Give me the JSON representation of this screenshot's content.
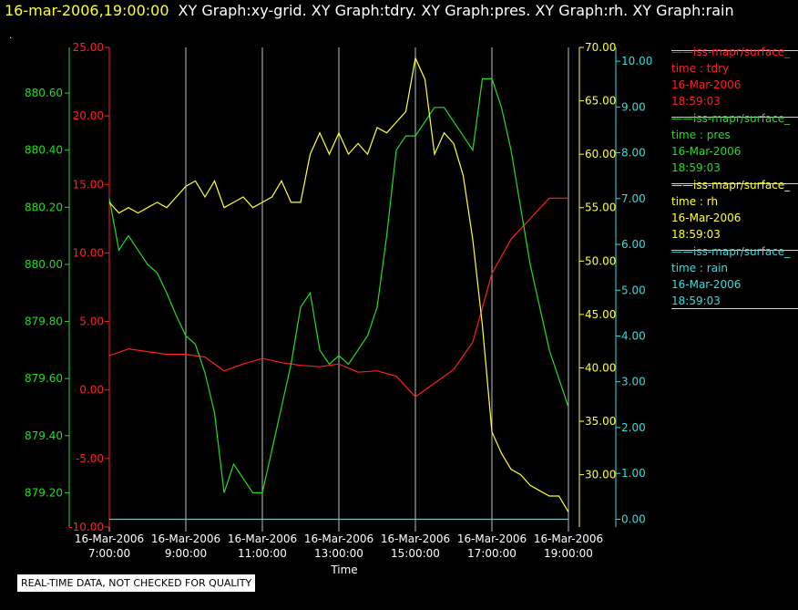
{
  "header": {
    "time": "16-mar-2006,19:00:00",
    "graphs": "XY Graph:xy-grid.  XY Graph:tdry.  XY Graph:pres.  XY Graph:rh.  XY Graph:rain"
  },
  "dot": ".",
  "legend": [
    {
      "name": "iss-mapr/surface_",
      "field": "time : tdry",
      "date": "16-Mar-2006",
      "time": "18:59:03",
      "color": "#ff2020"
    },
    {
      "name": "iss-mapr/surface_",
      "field": "time : pres",
      "date": "16-Mar-2006",
      "time": "18:59:03",
      "color": "#22dd22"
    },
    {
      "name": "iss-mapr/surface_",
      "field": "time : rh",
      "date": "16-Mar-2006",
      "time": "18:59:03",
      "color": "#ffff33"
    },
    {
      "name": "iss-mapr/surface_",
      "field": "time : rain",
      "date": "16-Mar-2006",
      "time": "18:59:03",
      "color": "#33dddd"
    }
  ],
  "footer_note": "REAL-TIME DATA, NOT CHECKED FOR QUALITY",
  "chart_data": {
    "type": "line",
    "xlabel": "Time",
    "x_ticks": [
      {
        "date": "16-Mar-2006",
        "time": "7:00:00"
      },
      {
        "date": "16-Mar-2006",
        "time": "9:00:00"
      },
      {
        "date": "16-Mar-2006",
        "time": "11:00:00"
      },
      {
        "date": "16-Mar-2006",
        "time": "13:00:00"
      },
      {
        "date": "16-Mar-2006",
        "time": "15:00:00"
      },
      {
        "date": "16-Mar-2006",
        "time": "17:00:00"
      },
      {
        "date": "16-Mar-2006",
        "time": "19:00:00"
      }
    ],
    "xlim_hours": [
      7,
      19
    ],
    "grid": "vertical",
    "axes": [
      {
        "series": "tdry",
        "color": "#ff2020",
        "ylim": [
          -10,
          25
        ],
        "ticks": [
          "-10.00",
          "-5.00",
          "0.00",
          "5.00",
          "10.00",
          "15.00",
          "20.00",
          "25.00"
        ]
      },
      {
        "series": "pres",
        "color": "#22dd22",
        "ylim": [
          879.08,
          880.76
        ],
        "ticks": [
          "879.20",
          "879.40",
          "879.60",
          "879.80",
          "880.00",
          "880.20",
          "880.40",
          "880.60"
        ]
      },
      {
        "series": "rh",
        "color": "#ffff33",
        "ylim": [
          25.1,
          70
        ],
        "ticks": [
          "30.00",
          "35.00",
          "40.00",
          "45.00",
          "50.00",
          "55.00",
          "60.00",
          "65.00",
          "70.00"
        ]
      },
      {
        "series": "rain",
        "color": "#33dddd",
        "ylim": [
          -0.17,
          10.3
        ],
        "ticks": [
          "0.00",
          "1.00",
          "2.00",
          "3.00",
          "4.00",
          "5.00",
          "6.00",
          "7.00",
          "8.00",
          "9.00",
          "10.00"
        ]
      }
    ],
    "series": [
      {
        "name": "tdry",
        "color": "#ff2020",
        "x": [
          7.0,
          7.5,
          8.0,
          8.5,
          9.0,
          9.5,
          10.0,
          10.5,
          11.0,
          11.5,
          12.0,
          12.5,
          13.0,
          13.5,
          14.0,
          14.5,
          15.0,
          15.5,
          16.0,
          16.5,
          17.0,
          17.5,
          18.0,
          18.5,
          19.0
        ],
        "y": [
          2.5,
          3.0,
          2.8,
          2.6,
          2.6,
          2.4,
          1.4,
          1.9,
          2.3,
          2.0,
          1.8,
          1.7,
          1.9,
          1.3,
          1.4,
          1.0,
          -0.5,
          0.5,
          1.5,
          3.5,
          8.5,
          11.0,
          12.5,
          14.0,
          14.0
        ]
      },
      {
        "name": "pres",
        "color": "#22dd22",
        "x": [
          7.0,
          7.25,
          7.5,
          7.75,
          8.0,
          8.25,
          8.5,
          8.75,
          9.0,
          9.25,
          9.5,
          9.75,
          10.0,
          10.25,
          10.5,
          10.75,
          11.0,
          11.25,
          11.5,
          11.75,
          12.0,
          12.25,
          12.5,
          12.75,
          13.0,
          13.25,
          13.5,
          13.75,
          14.0,
          14.25,
          14.5,
          14.75,
          15.0,
          15.25,
          15.5,
          15.75,
          16.0,
          16.25,
          16.5,
          16.75,
          17.0,
          17.25,
          17.5,
          17.75,
          18.0,
          18.25,
          18.5,
          18.75,
          19.0
        ],
        "y": [
          880.23,
          880.05,
          880.1,
          880.05,
          880.0,
          879.97,
          879.9,
          879.82,
          879.75,
          879.72,
          879.62,
          879.48,
          879.2,
          879.3,
          879.25,
          879.2,
          879.2,
          879.35,
          879.5,
          879.65,
          879.85,
          879.9,
          879.7,
          879.65,
          879.68,
          879.65,
          879.7,
          879.75,
          879.85,
          880.1,
          880.4,
          880.45,
          880.45,
          880.5,
          880.55,
          880.55,
          880.5,
          880.45,
          880.4,
          880.65,
          880.65,
          880.55,
          880.4,
          880.2,
          880.0,
          879.85,
          879.7,
          879.6,
          879.5
        ]
      },
      {
        "name": "rh",
        "color": "#ffff33",
        "x": [
          7.0,
          7.25,
          7.5,
          7.75,
          8.0,
          8.25,
          8.5,
          8.75,
          9.0,
          9.25,
          9.5,
          9.75,
          10.0,
          10.25,
          10.5,
          10.75,
          11.0,
          11.25,
          11.5,
          11.75,
          12.0,
          12.25,
          12.5,
          12.75,
          13.0,
          13.25,
          13.5,
          13.75,
          14.0,
          14.25,
          14.5,
          14.75,
          15.0,
          15.25,
          15.5,
          15.75,
          16.0,
          16.25,
          16.5,
          16.75,
          17.0,
          17.25,
          17.5,
          17.75,
          18.0,
          18.25,
          18.5,
          18.75,
          19.0
        ],
        "y": [
          55.5,
          54.5,
          55.0,
          54.5,
          55.0,
          55.5,
          55.0,
          56.0,
          57.0,
          57.5,
          56.0,
          57.5,
          55.0,
          55.5,
          56.0,
          55.0,
          55.5,
          56.0,
          57.5,
          55.5,
          55.5,
          60.0,
          62.0,
          60.0,
          62.0,
          60.0,
          61.0,
          60.0,
          62.5,
          62.0,
          63.0,
          64.0,
          69.0,
          67.0,
          60.0,
          62.0,
          61.0,
          58.0,
          52.0,
          44.0,
          34.0,
          32.0,
          30.5,
          30.0,
          29.0,
          28.5,
          28.0,
          28.0,
          26.5
        ]
      },
      {
        "name": "rain",
        "color": "#33dddd",
        "x": [
          7.0,
          19.0
        ],
        "y": [
          0.0,
          0.0
        ]
      }
    ]
  }
}
